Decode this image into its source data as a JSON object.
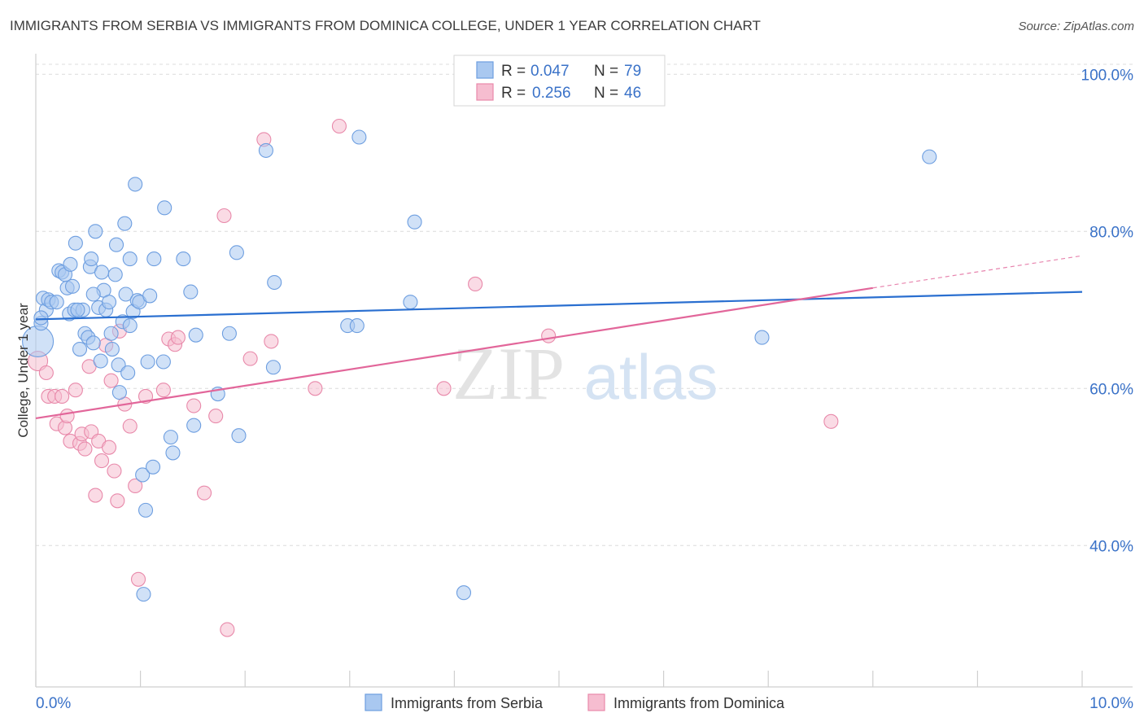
{
  "header": {
    "title": "IMMIGRANTS FROM SERBIA VS IMMIGRANTS FROM DOMINICA COLLEGE, UNDER 1 YEAR CORRELATION CHART",
    "source": "Source: ZipAtlas.com"
  },
  "watermark": {
    "zip": "ZIP",
    "atlas": "atlas"
  },
  "colors": {
    "serbia_fill": "#a9c8f0",
    "serbia_stroke": "#6d9ee0",
    "serbia_line": "#2a6fd0",
    "dominica_fill": "#f6bdd0",
    "dominica_stroke": "#e889aa",
    "dominica_line": "#e2669a",
    "value_text": "#3a72c8",
    "grid": "#dcdcdc"
  },
  "legend_top": {
    "rows": [
      {
        "r_label": "R = ",
        "r_value": "0.047",
        "n_label": "N = ",
        "n_value": "79"
      },
      {
        "r_label": "R = ",
        "r_value": "0.256",
        "n_label": "N = ",
        "n_value": "46"
      }
    ]
  },
  "legend_bottom": {
    "items": [
      {
        "label": "Immigrants from Serbia"
      },
      {
        "label": "Immigrants from Dominica"
      }
    ]
  },
  "chart_data": {
    "type": "scatter",
    "title": "IMMIGRANTS FROM SERBIA VS IMMIGRANTS FROM DOMINICA COLLEGE, UNDER 1 YEAR CORRELATION CHART",
    "xlabel": "",
    "ylabel": "College, Under 1 year",
    "xlim": [
      0,
      10
    ],
    "ylim": [
      22,
      102
    ],
    "x_tick_labels": [
      "0.0%",
      "10.0%"
    ],
    "y_ticks": [
      40,
      60,
      80,
      100
    ],
    "y_tick_labels": [
      "40.0%",
      "60.0%",
      "80.0%",
      "100.0%"
    ],
    "grid": true,
    "series": [
      {
        "name": "Immigrants from Serbia",
        "r": 0.047,
        "n": 79,
        "trend": {
          "x0": 0,
          "y0": 68.8,
          "x1": 10,
          "y1": 72.3
        },
        "points": [
          [
            0.02,
            66.0,
            3
          ],
          [
            0.05,
            68.3,
            1
          ],
          [
            0.07,
            71.5,
            1
          ],
          [
            0.1,
            70.0,
            1
          ],
          [
            0.12,
            71.3,
            1
          ],
          [
            0.15,
            71.0,
            1
          ],
          [
            0.2,
            71.0,
            1
          ],
          [
            0.22,
            75.0,
            1
          ],
          [
            0.25,
            74.8,
            1
          ],
          [
            0.28,
            74.5,
            1
          ],
          [
            0.3,
            72.8,
            1
          ],
          [
            0.32,
            69.5,
            1
          ],
          [
            0.33,
            75.8,
            1
          ],
          [
            0.35,
            73.0,
            1
          ],
          [
            0.37,
            70.0,
            1
          ],
          [
            0.38,
            78.5,
            1
          ],
          [
            0.42,
            65.0,
            1
          ],
          [
            0.45,
            70.0,
            1
          ],
          [
            0.47,
            67.0,
            1
          ],
          [
            0.5,
            66.5,
            1
          ],
          [
            0.52,
            75.5,
            1
          ],
          [
            0.53,
            76.5,
            1
          ],
          [
            0.55,
            65.8,
            1
          ],
          [
            0.57,
            80.0,
            1
          ],
          [
            0.6,
            70.3,
            1
          ],
          [
            0.62,
            63.5,
            1
          ],
          [
            0.63,
            74.8,
            1
          ],
          [
            0.65,
            72.5,
            1
          ],
          [
            0.67,
            70.0,
            1
          ],
          [
            0.7,
            71.0,
            1
          ],
          [
            0.72,
            67.0,
            1
          ],
          [
            0.73,
            65.0,
            1
          ],
          [
            0.76,
            74.5,
            1
          ],
          [
            0.77,
            78.3,
            1
          ],
          [
            0.79,
            63.0,
            1
          ],
          [
            0.8,
            59.5,
            1
          ],
          [
            0.83,
            68.5,
            1
          ],
          [
            0.85,
            81.0,
            1
          ],
          [
            0.86,
            72.0,
            1
          ],
          [
            0.88,
            62.0,
            1
          ],
          [
            0.9,
            76.5,
            1
          ],
          [
            0.93,
            69.8,
            1
          ],
          [
            0.95,
            86.0,
            1
          ],
          [
            0.97,
            71.2,
            1
          ],
          [
            0.99,
            71.0,
            1
          ],
          [
            1.02,
            49.0,
            1
          ],
          [
            1.03,
            33.8,
            1
          ],
          [
            1.05,
            44.5,
            1
          ],
          [
            1.07,
            63.4,
            1
          ],
          [
            1.09,
            71.8,
            1
          ],
          [
            1.12,
            50.0,
            1
          ],
          [
            1.13,
            76.5,
            1
          ],
          [
            1.22,
            63.4,
            1
          ],
          [
            1.23,
            83.0,
            1
          ],
          [
            1.29,
            53.8,
            1
          ],
          [
            1.31,
            51.8,
            1
          ],
          [
            1.41,
            76.5,
            1
          ],
          [
            1.48,
            72.3,
            1
          ],
          [
            1.51,
            55.3,
            1
          ],
          [
            1.53,
            66.8,
            1
          ],
          [
            1.74,
            59.3,
            1
          ],
          [
            1.85,
            67.0,
            1
          ],
          [
            1.92,
            77.3,
            1
          ],
          [
            1.94,
            54.0,
            1
          ],
          [
            2.2,
            90.3,
            1
          ],
          [
            2.27,
            62.7,
            1
          ],
          [
            2.28,
            73.5,
            1
          ],
          [
            2.98,
            68.0,
            1
          ],
          [
            3.07,
            68.0,
            1
          ],
          [
            3.09,
            92.0,
            1
          ],
          [
            3.58,
            71.0,
            1
          ],
          [
            3.62,
            81.2,
            1
          ],
          [
            4.09,
            34.0,
            1
          ],
          [
            6.94,
            66.5,
            1
          ],
          [
            8.54,
            89.5,
            1
          ],
          [
            0.05,
            69.0,
            1
          ],
          [
            0.4,
            70.0,
            1
          ],
          [
            0.55,
            72.0,
            1
          ],
          [
            0.9,
            68.0,
            1
          ]
        ]
      },
      {
        "name": "Immigrants from Dominica",
        "r": 0.256,
        "n": 46,
        "trend": {
          "x0": 0,
          "y0": 56.2,
          "x1": 8.0,
          "y1": 72.8
        },
        "trend_dashed_to": {
          "x": 10,
          "y": 76.9
        },
        "points": [
          [
            0.02,
            63.5,
            2
          ],
          [
            0.1,
            62.0,
            1
          ],
          [
            0.12,
            59.0,
            1
          ],
          [
            0.18,
            59.0,
            1
          ],
          [
            0.2,
            55.5,
            1
          ],
          [
            0.25,
            59.0,
            1
          ],
          [
            0.28,
            55.0,
            1
          ],
          [
            0.3,
            56.5,
            1
          ],
          [
            0.33,
            53.3,
            1
          ],
          [
            0.38,
            59.8,
            1
          ],
          [
            0.42,
            53.0,
            1
          ],
          [
            0.44,
            54.2,
            1
          ],
          [
            0.47,
            52.3,
            1
          ],
          [
            0.51,
            62.8,
            1
          ],
          [
            0.53,
            54.5,
            1
          ],
          [
            0.57,
            46.4,
            1
          ],
          [
            0.6,
            53.3,
            1
          ],
          [
            0.63,
            50.8,
            1
          ],
          [
            0.67,
            65.5,
            1
          ],
          [
            0.7,
            52.5,
            1
          ],
          [
            0.72,
            61.0,
            1
          ],
          [
            0.75,
            49.5,
            1
          ],
          [
            0.78,
            45.7,
            1
          ],
          [
            0.8,
            67.3,
            1
          ],
          [
            0.85,
            58.0,
            1
          ],
          [
            0.9,
            55.2,
            1
          ],
          [
            0.95,
            47.6,
            1
          ],
          [
            0.98,
            35.7,
            1
          ],
          [
            1.05,
            59.0,
            1
          ],
          [
            1.22,
            59.8,
            1
          ],
          [
            1.27,
            66.3,
            1
          ],
          [
            1.33,
            65.6,
            1
          ],
          [
            1.36,
            66.5,
            1
          ],
          [
            1.51,
            57.8,
            1
          ],
          [
            1.61,
            46.7,
            1
          ],
          [
            1.72,
            56.5,
            1
          ],
          [
            1.8,
            82.0,
            1
          ],
          [
            1.83,
            29.3,
            1
          ],
          [
            2.05,
            63.8,
            1
          ],
          [
            2.18,
            91.7,
            1
          ],
          [
            2.25,
            66.0,
            1
          ],
          [
            2.67,
            60.0,
            1
          ],
          [
            2.9,
            93.4,
            1
          ],
          [
            3.9,
            60.0,
            1
          ],
          [
            4.2,
            73.3,
            1
          ],
          [
            4.9,
            66.7,
            1
          ],
          [
            7.6,
            55.8,
            1
          ]
        ]
      }
    ]
  }
}
